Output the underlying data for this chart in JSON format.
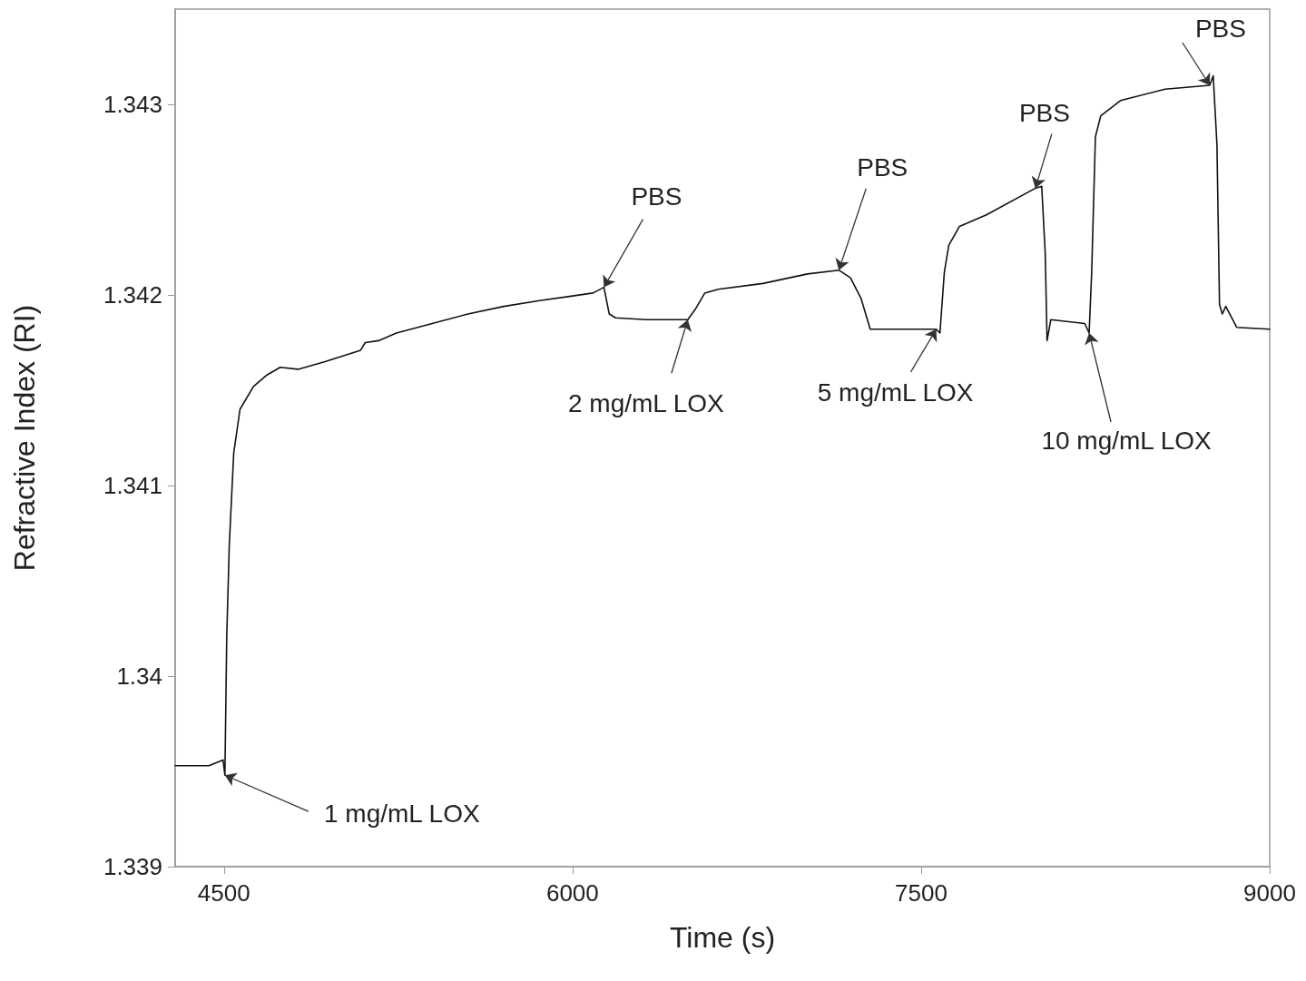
{
  "chart_data": {
    "type": "line",
    "xlabel": "Time (s)",
    "ylabel": "Refractive Index (RI)",
    "xlim": [
      4290,
      9000
    ],
    "xticks": [
      4500,
      6000,
      7500,
      9000
    ],
    "ylim": [
      1.339,
      1.3435
    ],
    "yticks": [
      1.339,
      1.34,
      1.341,
      1.342,
      1.343
    ],
    "grid": false,
    "marker": "none",
    "line_style": "solid",
    "series": [
      {
        "color": "#111111",
        "x": [
          4290,
          4435,
          4496,
          4504,
          4512,
          4523,
          4542,
          4569,
          4627,
          4685,
          4742,
          4819,
          4935,
          5088,
          5108,
          5165,
          5242,
          5396,
          5550,
          5704,
          5858,
          5973,
          6088,
          6135,
          6158,
          6185,
          6319,
          6496,
          6531,
          6569,
          6627,
          6819,
          7011,
          7146,
          7196,
          7242,
          7281,
          7396,
          7565,
          7581,
          7600,
          7619,
          7665,
          7781,
          7992,
          8019,
          8034,
          8042,
          8058,
          8204,
          8223,
          8234,
          8250,
          8273,
          8358,
          8550,
          8742,
          8757,
          8773,
          8784,
          8796,
          8811,
          8858,
          9000
        ],
        "values": [
          1.33953,
          1.33953,
          1.33956,
          1.33948,
          1.34021,
          1.34069,
          1.34117,
          1.3414,
          1.34152,
          1.34158,
          1.34162,
          1.34161,
          1.34165,
          1.34171,
          1.34175,
          1.34176,
          1.3418,
          1.34185,
          1.3419,
          1.34194,
          1.34197,
          1.34199,
          1.34201,
          1.34204,
          1.3419,
          1.34188,
          1.34187,
          1.34187,
          1.34193,
          1.34201,
          1.34203,
          1.34206,
          1.34211,
          1.34213,
          1.34209,
          1.34198,
          1.34182,
          1.34182,
          1.34182,
          1.3418,
          1.34212,
          1.34226,
          1.34236,
          1.34242,
          1.34256,
          1.34257,
          1.34222,
          1.34176,
          1.34187,
          1.34185,
          1.3418,
          1.34212,
          1.34283,
          1.34294,
          1.34302,
          1.34308,
          1.3431,
          1.34315,
          1.34279,
          1.34195,
          1.3419,
          1.34194,
          1.34183,
          1.34182
        ]
      }
    ],
    "annotations": [
      {
        "text": "1 mg/mL LOX",
        "x": 4504,
        "y": 1.33948
      },
      {
        "text": "PBS",
        "x": 6135,
        "y": 1.34204
      },
      {
        "text": "2 mg/mL LOX",
        "x": 6496,
        "y": 1.34187
      },
      {
        "text": "PBS",
        "x": 7146,
        "y": 1.34213
      },
      {
        "text": "5 mg/mL LOX",
        "x": 7565,
        "y": 1.34182
      },
      {
        "text": "PBS",
        "x": 7992,
        "y": 1.34256
      },
      {
        "text": "10 mg/mL LOX",
        "x": 8223,
        "y": 1.3418
      },
      {
        "text": "PBS",
        "x": 8742,
        "y": 1.3431
      }
    ]
  }
}
